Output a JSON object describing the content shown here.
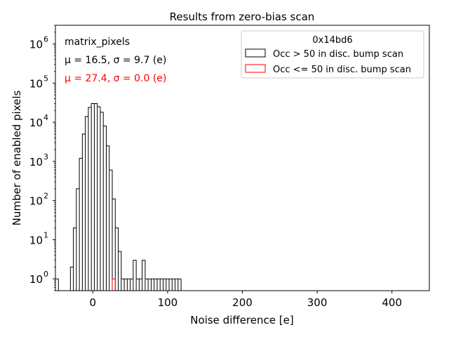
{
  "chart_data": {
    "type": "histogram",
    "title": "Results from zero-bias scan",
    "xlabel": "Noise difference [e]",
    "ylabel": "Number of enabled pixels",
    "xlim": [
      -50,
      450
    ],
    "ylim": [
      0.5,
      3000000
    ],
    "y_scale": "log",
    "x_ticks": [
      0,
      100,
      200,
      300,
      400
    ],
    "y_ticks": [
      {
        "value": 1,
        "base": "10",
        "exp": "0"
      },
      {
        "value": 10,
        "base": "10",
        "exp": "1"
      },
      {
        "value": 100,
        "base": "10",
        "exp": "2"
      },
      {
        "value": 1000,
        "base": "10",
        "exp": "3"
      },
      {
        "value": 10000,
        "base": "10",
        "exp": "4"
      },
      {
        "value": 100000,
        "base": "10",
        "exp": "5"
      },
      {
        "value": 1000000,
        "base": "10",
        "exp": "6"
      }
    ],
    "grid": false,
    "legend_placement": "top-right",
    "legend_title": "0x14bd6",
    "annotations": {
      "label": "matrix_pixels",
      "stats_black": "μ = 16.5, σ = 9.7 (e)",
      "stats_red": "μ = 27.4, σ = 0.0 (e)"
    },
    "series": [
      {
        "name": "Occ > 50 in disc. bump scan",
        "color": "#000000",
        "bin_width": 4,
        "bins": [
          [
            -50,
            1
          ],
          [
            -30,
            2
          ],
          [
            -26,
            20
          ],
          [
            -22,
            200
          ],
          [
            -18,
            1200
          ],
          [
            -14,
            5000
          ],
          [
            -10,
            14000
          ],
          [
            -6,
            24000
          ],
          [
            -2,
            30000
          ],
          [
            2,
            30000
          ],
          [
            6,
            25000
          ],
          [
            10,
            18000
          ],
          [
            14,
            8000
          ],
          [
            18,
            2500
          ],
          [
            22,
            600
          ],
          [
            26,
            110
          ],
          [
            30,
            20
          ],
          [
            34,
            5
          ],
          [
            38,
            1
          ],
          [
            42,
            1
          ],
          [
            46,
            1
          ],
          [
            50,
            1
          ],
          [
            54,
            3
          ],
          [
            58,
            1
          ],
          [
            62,
            1
          ],
          [
            66,
            3
          ],
          [
            70,
            1
          ],
          [
            74,
            1
          ],
          [
            78,
            1
          ],
          [
            82,
            1
          ],
          [
            86,
            1
          ],
          [
            90,
            1
          ],
          [
            94,
            1
          ],
          [
            98,
            1
          ],
          [
            102,
            1
          ],
          [
            106,
            1
          ],
          [
            110,
            1
          ],
          [
            114,
            1
          ]
        ]
      },
      {
        "name": "Occ <= 50 in disc. bump scan",
        "color": "#ff0000",
        "bin_width": 4,
        "bins": [
          [
            26,
            1
          ]
        ]
      }
    ]
  }
}
